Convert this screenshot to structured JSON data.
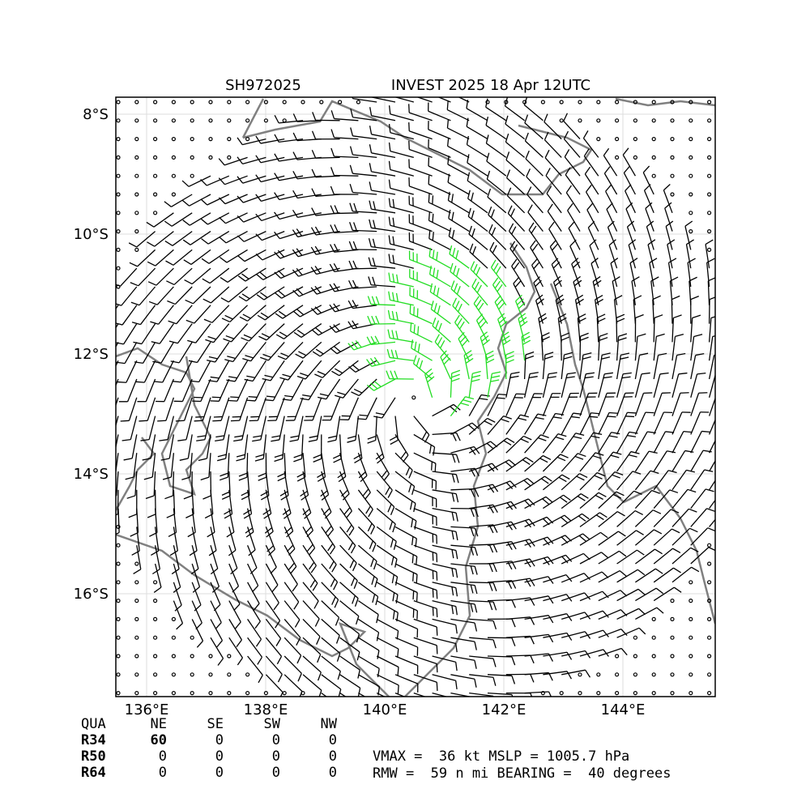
{
  "header": {
    "storm_id": "SH972025",
    "title": "INVEST 2025 18 Apr 12UTC"
  },
  "map": {
    "lon_ticks": [
      {
        "value": 136,
        "label": "136°E"
      },
      {
        "value": 138,
        "label": "138°E"
      },
      {
        "value": 140,
        "label": "140°E"
      },
      {
        "value": 142,
        "label": "142°E"
      },
      {
        "value": 144,
        "label": "144°E"
      }
    ],
    "lat_ticks": [
      {
        "value": -8,
        "label": "8°S"
      },
      {
        "value": -10,
        "label": "10°S"
      },
      {
        "value": -12,
        "label": "12°S"
      },
      {
        "value": -14,
        "label": "14°S"
      },
      {
        "value": -16,
        "label": "16°S"
      }
    ]
  },
  "table": {
    "header": [
      "QUA",
      "NE",
      "SE",
      "SW",
      "NW"
    ],
    "rows": [
      [
        "R34",
        60,
        0,
        0,
        0
      ],
      [
        "R50",
        0,
        0,
        0,
        0
      ],
      [
        "R64",
        0,
        0,
        0,
        0
      ]
    ]
  },
  "info": [
    "VMAX =  36 kt MSLP = 1005.7 hPa",
    "RMW =  59 n mi BEARING =  40 degrees"
  ]
}
